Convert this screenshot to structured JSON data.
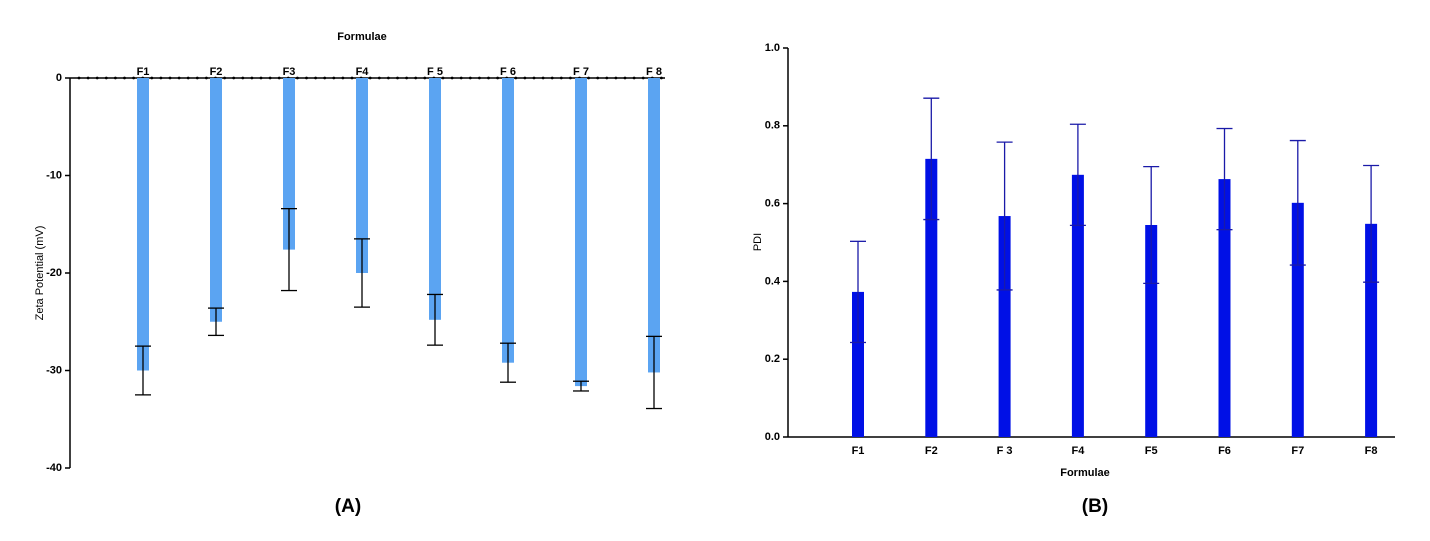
{
  "chart_data": [
    {
      "type": "bar",
      "title": "Formulae",
      "y_label": "Zeta Potential (mV)",
      "caption": "(A)",
      "categories": [
        "F1",
        "F2",
        "F3",
        "F4",
        "F 5",
        "F 6",
        "F 7",
        "F 8"
      ],
      "values": [
        -30,
        -25,
        -17.6,
        -20,
        -24.8,
        -29.2,
        -31.6,
        -30.2
      ],
      "errors": [
        2.5,
        1.4,
        4.2,
        3.5,
        2.6,
        2.0,
        0.5,
        3.7
      ],
      "color": "#5ba4f2",
      "error_color": "#000000",
      "ylim": [
        -40,
        0
      ],
      "yticks": [
        0,
        -10,
        -20,
        -30,
        -40
      ]
    },
    {
      "type": "bar",
      "x_label": "Formulae",
      "y_label": "PDI",
      "caption": "(B)",
      "categories": [
        "F1",
        "F2",
        "F 3",
        "F4",
        "F5",
        "F6",
        "F7",
        "F8"
      ],
      "values": [
        0.373,
        0.715,
        0.568,
        0.674,
        0.545,
        0.663,
        0.602,
        0.548
      ],
      "errors": [
        0.13,
        0.156,
        0.19,
        0.13,
        0.15,
        0.13,
        0.16,
        0.15
      ],
      "color": "#0010e6",
      "error_color": "#1a1aa8",
      "ylim": [
        0,
        1
      ],
      "yticks": [
        {
          "value": 0,
          "label": "0.0"
        },
        0.2,
        0.4,
        0.6,
        0.8,
        {
          "value": 1,
          "label": "1.0"
        }
      ]
    }
  ]
}
